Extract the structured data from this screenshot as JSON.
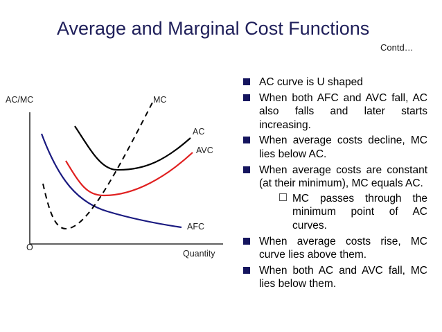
{
  "title": "Average and Marginal Cost Functions",
  "contd": "Contd…",
  "diagram": {
    "y_axis_label": "AC/MC",
    "x_axis_label": "Quantity",
    "origin_label": "O",
    "curves": {
      "mc": {
        "label": "MC",
        "color": "#000000",
        "style": "dashed"
      },
      "ac": {
        "label": "AC",
        "color": "#000000",
        "style": "solid"
      },
      "avc": {
        "label": "AVC",
        "color": "#e02020",
        "style": "solid"
      },
      "afc": {
        "label": "AFC",
        "color": "#1a1a80",
        "style": "solid"
      }
    }
  },
  "bullets": [
    {
      "text": "AC curve is U shaped"
    },
    {
      "text": "When both AFC and AVC fall, AC also falls and later starts increasing."
    },
    {
      "text": "When average costs decline, MC lies below AC."
    },
    {
      "text": "When average costs are constant (at their minimum), MC equals AC."
    },
    {
      "sub": "MC passes through the minimum point of AC curves."
    },
    {
      "text": "When average costs rise, MC curve lies above them."
    },
    {
      "text": "When both AC and AVC fall, MC lies below them."
    }
  ],
  "colors": {
    "title": "#1f1f5a",
    "bullet_marker": "#15155e"
  }
}
